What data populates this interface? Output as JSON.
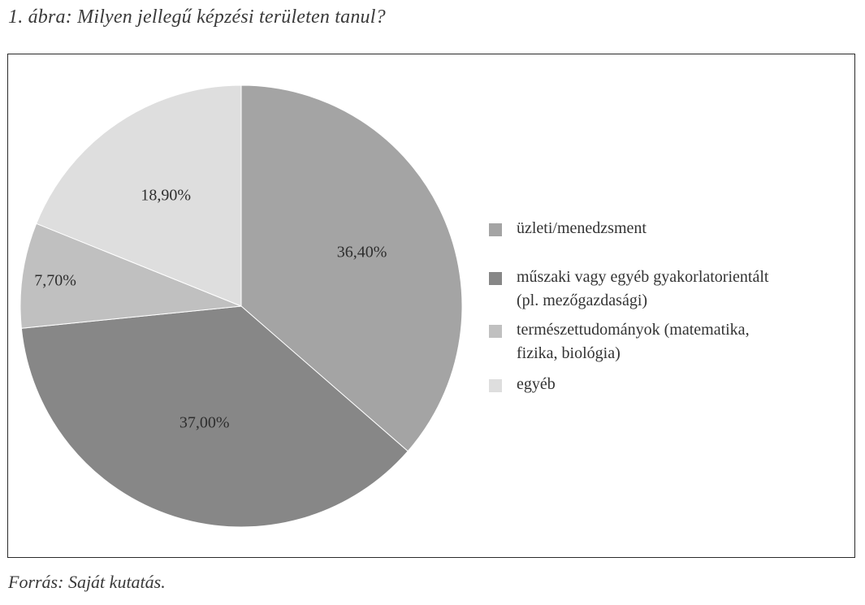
{
  "figure": {
    "caption": "1. ábra: Milyen jellegű képzési területen tanul?",
    "source": "Forrás: Saját kutatás."
  },
  "chart_data": {
    "type": "pie",
    "start_angle": "12 o'clock",
    "direction": "clockwise",
    "slices": [
      {
        "name": "üzleti/menedzsment",
        "value": 36.4,
        "label": "36,40%",
        "color": "#a4a4a4"
      },
      {
        "name": "műszaki vagy egyéb gyakorlatorientált\n(pl. mezőgazdasági)",
        "value": 37.0,
        "label": "37,00%",
        "color": "#878787"
      },
      {
        "name": "természettudományok (matematika,\nfizika, biológia)",
        "value": 7.7,
        "label": "7,70%",
        "color": "#c0c0c0"
      },
      {
        "name": "egyéb",
        "value": 18.9,
        "label": "18,90%",
        "color": "#dedede"
      }
    ],
    "legend_position": "right"
  }
}
